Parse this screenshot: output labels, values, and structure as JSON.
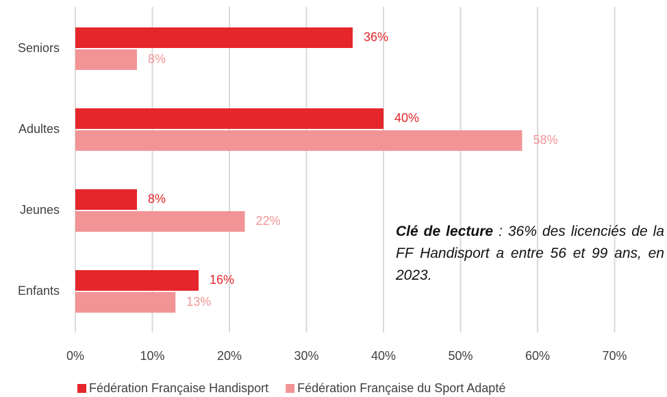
{
  "chart_data": {
    "type": "hbar",
    "categories": [
      "Seniors",
      "Adultes",
      "Jeunes",
      "Enfants"
    ],
    "series": [
      {
        "name": "Fédération Française Handisport",
        "color": "#e5262c",
        "values": [
          36,
          40,
          8,
          16
        ],
        "value_labels": [
          "36%",
          "40%",
          "8%",
          "16%"
        ]
      },
      {
        "name": "Fédération Française du Sport Adapté",
        "color": "#f29496",
        "values": [
          8,
          58,
          22,
          13
        ],
        "value_labels": [
          "8%",
          "58%",
          "22%",
          "13%"
        ]
      }
    ],
    "xlim": [
      0,
      70
    ],
    "xticks": [
      {
        "value": 0,
        "label": "0%"
      },
      {
        "value": 10,
        "label": "10%"
      },
      {
        "value": 20,
        "label": "20%"
      },
      {
        "value": 30,
        "label": "30%"
      },
      {
        "value": 40,
        "label": "40%"
      },
      {
        "value": 50,
        "label": "50%"
      },
      {
        "value": 60,
        "label": "60%"
      },
      {
        "value": 70,
        "label": "70%"
      }
    ],
    "grid": true,
    "annotation_title": "Clé de lecture",
    "annotation": ": 36% des licenciés de la FF Handisport a entre 56 et 99 ans, en 2023."
  }
}
